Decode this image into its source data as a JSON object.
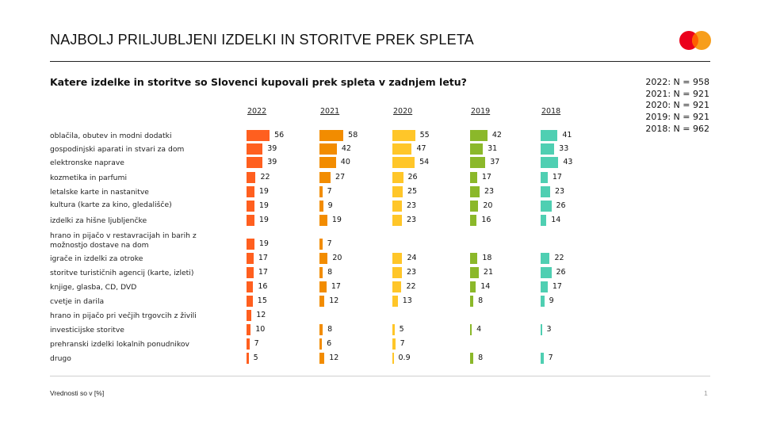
{
  "header": {
    "title": "NAJBOLJ PRILJUBLJENI IZDELKI IN STORITVE PREK SPLETA",
    "logo_icon": "mastercard-logo-icon",
    "logo_colors": [
      "#EB001B",
      "#F79E1B",
      "#FF5F00"
    ]
  },
  "subtitle": "Katere izdelke in storitve so Slovenci kupovali prek spleta v zadnjem letu?",
  "sample_sizes": [
    "2022: N = 958",
    "2021: N = 921",
    "2020: N = 921",
    "2019: N = 921",
    "2018: N = 962"
  ],
  "footer": {
    "note": "Vrednosti so v [%]",
    "page": "1"
  },
  "chart_data": {
    "type": "bar",
    "orientation": "horizontal",
    "title": "Katere izdelke in storitve so Slovenci kupovali prek spleta v zadnjem letu?",
    "xlabel": "",
    "ylabel": "",
    "unit": "%",
    "grid": false,
    "categories": [
      "oblačila, obutev in modni dodatki",
      "gospodinjski aparati in stvari za dom",
      "elektronske naprave",
      "kozmetika in parfumi",
      "letalske karte in nastanitve",
      "kultura (karte za kino, gledališče)",
      "izdelki za hišne ljubljenčke",
      "hrano in pijačo v restavracijah in barih z možnostjo dostave na dom",
      "igrače in izdelki za otroke",
      "storitve turističnih agencij (karte, izleti)",
      "knjige, glasba, CD, DVD",
      "cvetje in darila",
      "hrano in pijačo pri večjih trgovcih z živili",
      "investicijske storitve",
      "prehranski izdelki lokalnih ponudnikov",
      "drugo"
    ],
    "series": [
      {
        "name": "2022",
        "color": "#FF5F1F",
        "values": [
          56,
          39,
          39,
          22,
          19,
          19,
          19,
          19,
          17,
          17,
          16,
          15,
          12,
          10,
          7,
          5
        ]
      },
      {
        "name": "2021",
        "color": "#F28C00",
        "values": [
          58,
          42,
          40,
          27,
          7,
          9,
          19,
          7,
          20,
          8,
          17,
          12,
          null,
          8,
          6,
          12
        ]
      },
      {
        "name": "2020",
        "color": "#FFC629",
        "values": [
          55,
          47,
          54,
          26,
          25,
          23,
          23,
          null,
          24,
          23,
          22,
          13,
          null,
          5,
          7,
          0.9
        ]
      },
      {
        "name": "2019",
        "color": "#8BB82A",
        "values": [
          42,
          31,
          37,
          17,
          23,
          20,
          16,
          null,
          18,
          21,
          14,
          8,
          null,
          4,
          null,
          8
        ]
      },
      {
        "name": "2018",
        "color": "#4FCFB2",
        "values": [
          41,
          33,
          43,
          17,
          23,
          26,
          14,
          null,
          22,
          26,
          17,
          9,
          null,
          3,
          null,
          7
        ]
      }
    ]
  }
}
